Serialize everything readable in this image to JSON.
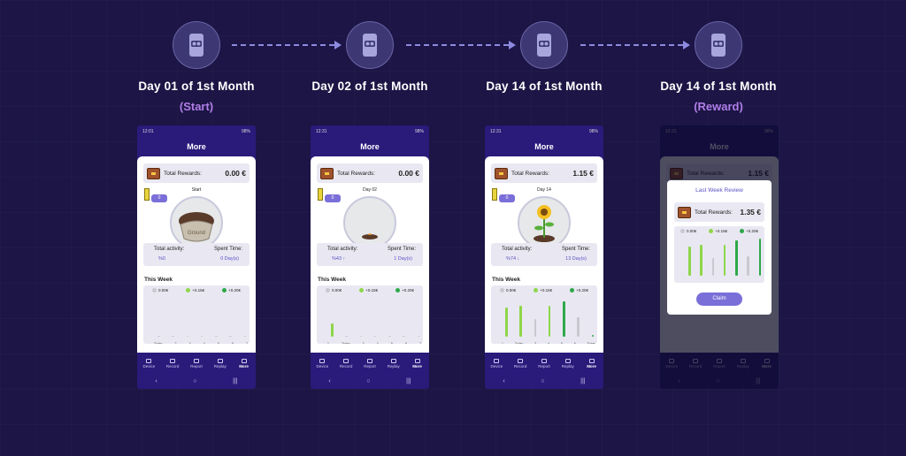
{
  "steps": [
    {
      "title": "Day 01 of 1st Month",
      "subtitle": "(Start)"
    },
    {
      "title": "Day 02 of 1st Month",
      "subtitle": ""
    },
    {
      "title": "Day 14 of 1st Month",
      "subtitle": ""
    },
    {
      "title": "Day 14 of 1st Month",
      "subtitle": "(Reward)"
    }
  ],
  "phones": [
    {
      "status_time": "12:01",
      "status_battery": "98%",
      "title": "More",
      "rewards_label": "Total Rewards:",
      "rewards_value": "0.00 €",
      "level": "0",
      "progress_label": "Start",
      "activity_label": "Total activity:",
      "activity_value": "%0",
      "spent_label": "Spent Time:",
      "spent_value": "0 Day(s)",
      "week_label": "This Week",
      "legend": [
        "0.00€",
        "+0.15€",
        "+0.20€"
      ],
      "bars": [
        0,
        0,
        0,
        0,
        0,
        0,
        0
      ],
      "xlabels": [
        "Today",
        "2",
        "3",
        "4",
        "5",
        "6",
        "7"
      ]
    },
    {
      "status_time": "12:31",
      "status_battery": "98%",
      "title": "More",
      "rewards_label": "Total Rewards:",
      "rewards_value": "0.00 €",
      "level": "0",
      "progress_label": "Day 02",
      "activity_label": "Total activity:",
      "activity_value": "%43 ↑",
      "spent_label": "Spent Time:",
      "spent_value": "1 Day(s)",
      "week_label": "This Week",
      "legend": [
        "0.00€",
        "+0.15€",
        "+0.20€"
      ],
      "bars": [
        0.35,
        0,
        0,
        0,
        0,
        0,
        0
      ],
      "xlabels": [
        "1",
        "Today",
        "3",
        "4",
        "5",
        "6",
        "7"
      ]
    },
    {
      "status_time": "12:31",
      "status_battery": "98%",
      "title": "More",
      "rewards_label": "Total Rewards:",
      "rewards_value": "1.15 €",
      "level": "0",
      "progress_label": "Day 14",
      "activity_label": "Total activity:",
      "activity_value": "%74 ↓",
      "spent_label": "Spent Time:",
      "spent_value": "13 Day(s)",
      "week_label": "This Week",
      "legend": [
        "0.00€",
        "+0.15€",
        "+0.20€"
      ],
      "bars": [
        0.75,
        0.8,
        0.45,
        0.8,
        0.9,
        0.5,
        0.05
      ],
      "xlabels": [
        "1",
        "Today",
        "3",
        "4",
        "5",
        "6",
        "Today"
      ]
    },
    {
      "status_time": "12:31",
      "status_battery": "98%",
      "title": "More",
      "rewards_label": "Total Rewards:",
      "rewards_value": "1.15 €",
      "modal_title": "Last Week Review",
      "modal_rewards_label": "Total Rewards:",
      "modal_rewards_value": "1.35 €",
      "legend": [
        "0.00€",
        "+0.15€",
        "+0.20€"
      ],
      "bars": [
        0.75,
        0.8,
        0.45,
        0.8,
        0.9,
        0.5,
        0.95
      ],
      "claim_label": "Claim"
    }
  ],
  "nav": [
    "Device",
    "Record",
    "Report",
    "Replay",
    "More"
  ],
  "colors": {
    "bg": "#1c1545",
    "phone": "#2a1a7a",
    "accent": "#7a6fd8",
    "gray_bar": "#c8c8d0",
    "lightgreen_bar": "#8ed64a",
    "green_bar": "#2ea84a"
  }
}
